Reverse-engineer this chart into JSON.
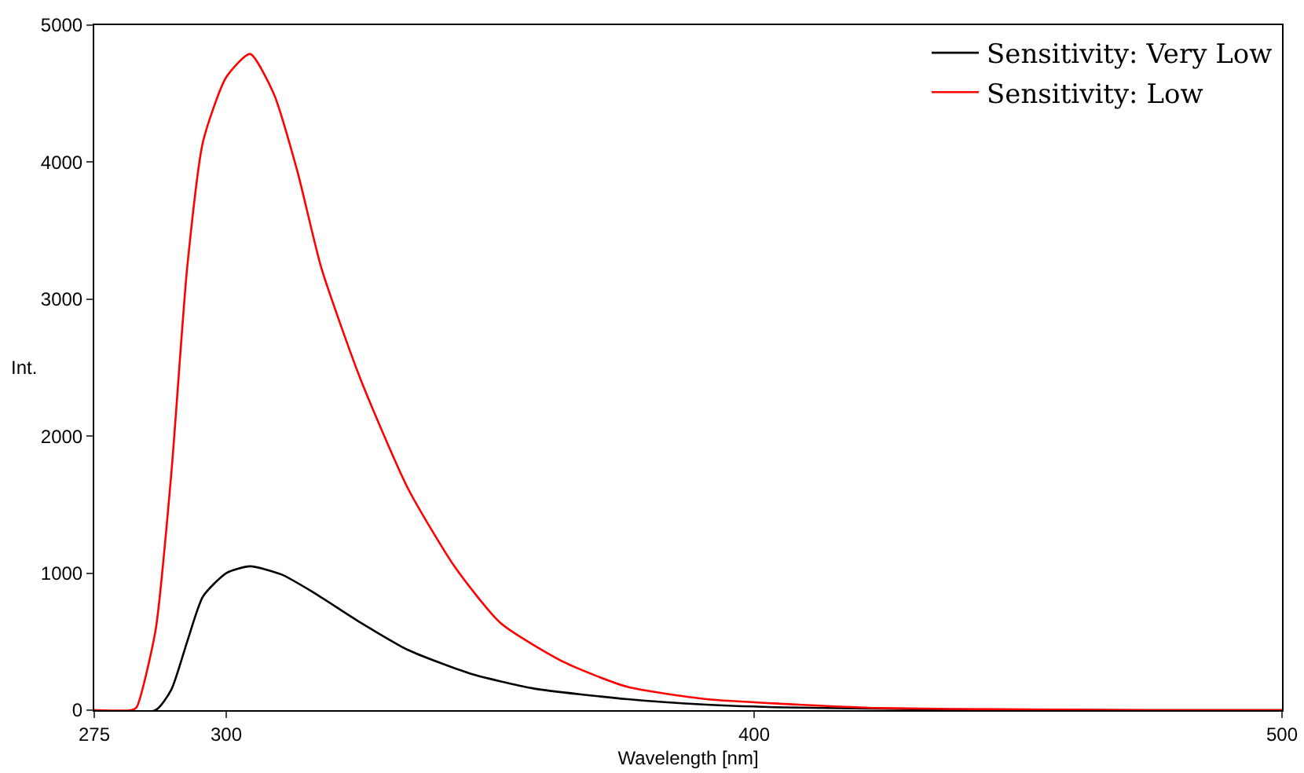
{
  "chart_data": {
    "type": "line",
    "xlabel": "Wavelength [nm]",
    "ylabel": "Int.",
    "xlim": [
      275,
      500
    ],
    "xticks": [
      275,
      300,
      400,
      500
    ],
    "ylim": [
      0,
      5000
    ],
    "yticks": [
      0,
      1000,
      2000,
      3000,
      4000,
      5000
    ],
    "grid": false,
    "legend": "top right",
    "marker": "none",
    "line_style": "solid",
    "series": [
      {
        "name": "Sensitivity: Very Low",
        "color": "#000000",
        "x": [
          275,
          286.6,
          289.6,
          292.6,
          295.6,
          300,
          304.5,
          310.5,
          316.5,
          325.4,
          334.4,
          346,
          358,
          376,
          391,
          406,
          436,
          470,
          500
        ],
        "values": [
          0,
          0,
          150,
          500,
          830,
          1000,
          1050,
          990,
          860,
          640,
          440,
          270,
          160,
          80,
          40,
          20,
          5,
          0,
          0
        ]
      },
      {
        "name": "Sensitivity: Low",
        "color": "#ff0000",
        "x": [
          275,
          282,
          283,
          286.6,
          289.6,
          292.6,
          295.6,
          300,
          304.5,
          309,
          313.5,
          318,
          325.4,
          334.4,
          343.4,
          352,
          364,
          376,
          391,
          406,
          424,
          451,
          475,
          500
        ],
        "values": [
          0,
          0,
          20,
          580,
          1730,
          3230,
          4150,
          4620,
          4790,
          4500,
          3930,
          3230,
          2420,
          1620,
          1040,
          635,
          350,
          170,
          80,
          45,
          15,
          5,
          0,
          0
        ]
      }
    ]
  }
}
